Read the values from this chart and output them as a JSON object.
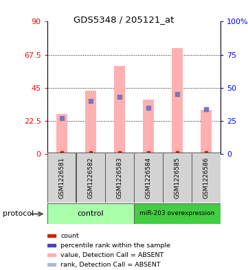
{
  "title": "GDS5348 / 205121_at",
  "samples": [
    "GSM1226581",
    "GSM1226582",
    "GSM1226583",
    "GSM1226584",
    "GSM1226585",
    "GSM1226586"
  ],
  "pink_bar_values": [
    27,
    43,
    60,
    37,
    72,
    30
  ],
  "blue_marker_values": [
    27,
    40,
    43,
    35,
    45,
    34
  ],
  "red_marker_values": [
    0.8,
    0.8,
    0.8,
    0.8,
    0.8,
    0.8
  ],
  "left_ylim": [
    0,
    90
  ],
  "right_ylim": [
    0,
    100
  ],
  "left_yticks": [
    0,
    22.5,
    45,
    67.5,
    90
  ],
  "right_yticks": [
    0,
    25,
    50,
    75,
    100
  ],
  "left_ytick_labels": [
    "0",
    "22.5",
    "45",
    "67.5",
    "90"
  ],
  "right_ytick_labels": [
    "0",
    "25",
    "50",
    "75",
    "100%"
  ],
  "pink_color": "#ffb0b0",
  "blue_color": "#7777bb",
  "red_color": "#cc2200",
  "sample_bg": "#d3d3d3",
  "control_color": "#aaffaa",
  "mir_color": "#44cc44",
  "legend_colors": [
    "#cc2200",
    "#4444bb",
    "#ffb0b0",
    "#aabbcc"
  ],
  "legend_labels": [
    "count",
    "percentile rank within the sample",
    "value, Detection Call = ABSENT",
    "rank, Detection Call = ABSENT"
  ]
}
